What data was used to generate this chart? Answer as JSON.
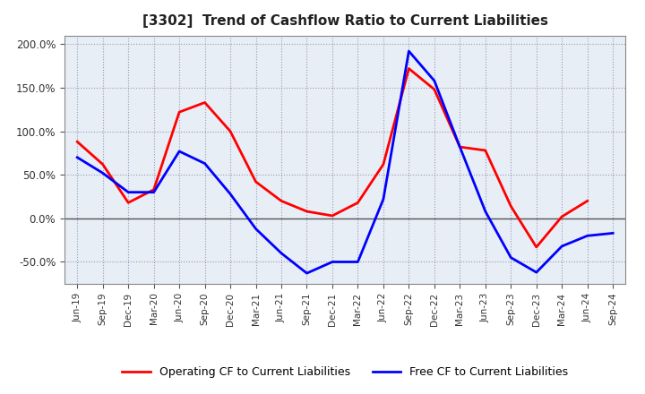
{
  "title": "[3302]  Trend of Cashflow Ratio to Current Liabilities",
  "x_labels": [
    "Jun-19",
    "Sep-19",
    "Dec-19",
    "Mar-20",
    "Jun-20",
    "Sep-20",
    "Dec-20",
    "Mar-21",
    "Jun-21",
    "Sep-21",
    "Dec-21",
    "Mar-22",
    "Jun-22",
    "Sep-22",
    "Dec-22",
    "Mar-23",
    "Jun-23",
    "Sep-23",
    "Dec-23",
    "Mar-24",
    "Jun-24",
    "Sep-24"
  ],
  "operating_cf": [
    88,
    62,
    18,
    33,
    122,
    133,
    100,
    42,
    20,
    8,
    3,
    18,
    62,
    172,
    148,
    82,
    78,
    14,
    -33,
    2,
    20,
    null
  ],
  "free_cf": [
    70,
    52,
    30,
    30,
    77,
    63,
    28,
    -12,
    -40,
    -63,
    -50,
    -50,
    22,
    192,
    158,
    82,
    8,
    -45,
    -62,
    -32,
    -20,
    -17
  ],
  "ylim": [
    -75,
    210
  ],
  "yticks": [
    -50,
    0,
    50,
    100,
    150,
    200
  ],
  "operating_color": "#ff0000",
  "free_color": "#0000ff",
  "background_color": "#ffffff",
  "plot_bg_color": "#e8eef5",
  "grid_color": "#9999bb",
  "legend_labels": [
    "Operating CF to Current Liabilities",
    "Free CF to Current Liabilities"
  ]
}
